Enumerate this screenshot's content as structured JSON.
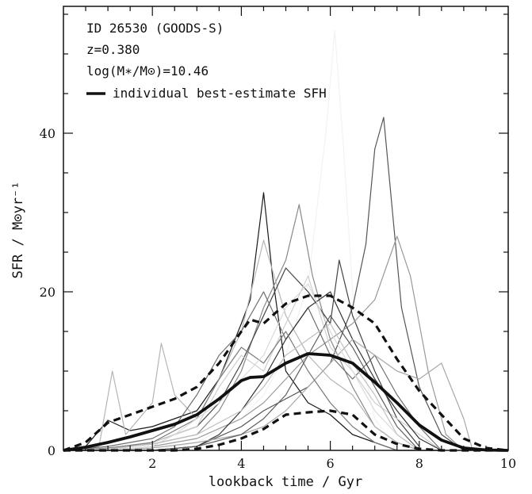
{
  "chart_data": {
    "type": "line",
    "annotations": {
      "id_label": "ID 26530 (GOODS-S)",
      "redshift_label": "z=0.380",
      "mass_label": "log(M∗/M⊙)=10.46",
      "legend_label": "individual best-estimate SFH"
    },
    "xlabel": "lookback time / Gyr",
    "ylabel": "SFR / M⊙yr⁻¹",
    "xlim": [
      0,
      10
    ],
    "ylim": [
      0,
      56
    ],
    "xticks": [
      2,
      4,
      6,
      8,
      10
    ],
    "yticks": [
      0,
      20,
      40
    ],
    "grid": false,
    "legend_position": "top-left",
    "central_percentile": {
      "name": "individual best-estimate SFH",
      "x": [
        0,
        0.5,
        1,
        1.5,
        2,
        2.5,
        3,
        3.5,
        4,
        4.2,
        4.5,
        5,
        5.5,
        6,
        6.5,
        7,
        7.5,
        8,
        8.5,
        9,
        9.5,
        10
      ],
      "y": [
        0,
        0.4,
        1.0,
        1.7,
        2.5,
        3.3,
        4.5,
        6.5,
        8.8,
        9.2,
        9.3,
        11.0,
        12.2,
        12.0,
        11.0,
        8.6,
        6.0,
        3.2,
        1.3,
        0.3,
        0.05,
        0
      ]
    },
    "upper_percentile": {
      "x": [
        0,
        0.5,
        1,
        1.5,
        2,
        2.5,
        3,
        3.5,
        4,
        4.2,
        4.5,
        5,
        5.5,
        6,
        6.5,
        7,
        7.5,
        8,
        8.5,
        9,
        9.5,
        10
      ],
      "y": [
        0,
        1.0,
        3.5,
        4.5,
        5.5,
        6.5,
        8.0,
        11.0,
        15.0,
        16.5,
        16.0,
        18.5,
        19.5,
        19.5,
        18.0,
        16.0,
        11.5,
        7.5,
        4.5,
        1.5,
        0.3,
        0
      ]
    },
    "lower_percentile": {
      "x": [
        0,
        0.5,
        1,
        1.5,
        2,
        2.5,
        3,
        3.5,
        4,
        4.5,
        5,
        5.5,
        6,
        6.5,
        7,
        7.5,
        8,
        8.5,
        9,
        10
      ],
      "y": [
        0,
        0,
        0,
        0,
        0,
        0,
        0.2,
        0.7,
        1.5,
        2.7,
        4.5,
        4.8,
        5.0,
        4.5,
        2.0,
        0.8,
        0.2,
        0,
        0,
        0
      ]
    },
    "individual_curves": [
      {
        "color": "#1a1a1a",
        "x": [
          0,
          0.5,
          1,
          1.5,
          2,
          2.5,
          3,
          3.5,
          4,
          4.2,
          4.5,
          4.7,
          5,
          5.5,
          6,
          6.5,
          7,
          7.5,
          8,
          8.5
        ],
        "y": [
          0,
          0.5,
          3.8,
          2.5,
          3.0,
          4.0,
          5.0,
          9.0,
          16.0,
          19.0,
          32.5,
          22.0,
          10.0,
          6.0,
          4.5,
          2.0,
          1.0,
          0,
          0,
          0
        ]
      },
      {
        "color": "#f2f2f2",
        "x": [
          0,
          2,
          3,
          4,
          4.5,
          5,
          5.5,
          5.9,
          6.1,
          6.3,
          6.5,
          6.8,
          7,
          7.5
        ],
        "y": [
          0,
          0,
          1.0,
          4.0,
          7.0,
          12.0,
          21.0,
          40.0,
          53.0,
          38.0,
          20.0,
          9.0,
          4.0,
          0
        ]
      },
      {
        "color": "#555555",
        "x": [
          0,
          1,
          2,
          3,
          4,
          4.5,
          5,
          5.5,
          6,
          6.5,
          6.8,
          7.0,
          7.2,
          7.4,
          7.6,
          8,
          8.5,
          9
        ],
        "y": [
          0,
          0,
          0,
          0.5,
          3.0,
          5.0,
          6.5,
          8.0,
          11.0,
          18.0,
          26.0,
          38.0,
          42.0,
          30.0,
          18.0,
          8.0,
          2.0,
          0
        ]
      },
      {
        "color": "#888888",
        "x": [
          0,
          1,
          2,
          3,
          3.5,
          4,
          4.5,
          5,
          5.3,
          5.6,
          6,
          6.5,
          7,
          7.5,
          8
        ],
        "y": [
          0,
          0.2,
          0.8,
          2.0,
          5.0,
          10.0,
          18.0,
          24.0,
          31.0,
          22.0,
          14.0,
          8.0,
          3.0,
          1.0,
          0
        ]
      },
      {
        "color": "#b5b5b5",
        "x": [
          0,
          0.8,
          1.1,
          1.4,
          2,
          2.2,
          2.5,
          3,
          3.5,
          4,
          4.5,
          5,
          5.5,
          6,
          6.5,
          7,
          7.5,
          8
        ],
        "y": [
          0,
          0.5,
          10.0,
          2.0,
          6.0,
          13.5,
          7.0,
          4.0,
          9.0,
          15.0,
          26.5,
          17.0,
          12.0,
          9.0,
          7.0,
          3.0,
          1.0,
          0
        ]
      },
      {
        "color": "#444444",
        "x": [
          0,
          1,
          2,
          3,
          3.5,
          4,
          4.5,
          5,
          5.5,
          6,
          6.2,
          6.5,
          7,
          7.5,
          8
        ],
        "y": [
          0,
          0,
          1.0,
          3.0,
          6.0,
          11.0,
          17.0,
          23.0,
          20.0,
          16.0,
          24.0,
          17.0,
          10.0,
          4.0,
          0.5
        ]
      },
      {
        "color": "#9a9a9a",
        "x": [
          0,
          1,
          2,
          3,
          4,
          4.5,
          5,
          5.5,
          6,
          6.5,
          7,
          7.5,
          7.8,
          8.2,
          8.6,
          9
        ],
        "y": [
          0,
          0,
          0.5,
          1.5,
          4.0,
          6.0,
          9.0,
          12.0,
          14.0,
          16.0,
          19.0,
          27.0,
          22.0,
          10.0,
          2.0,
          0
        ]
      },
      {
        "color": "#6e6e6e",
        "x": [
          0,
          1,
          2,
          2.5,
          3,
          3.5,
          4,
          4.5,
          5,
          5.5,
          6,
          6.5,
          7,
          7.5,
          8,
          8.5
        ],
        "y": [
          0,
          0.5,
          1.5,
          3.0,
          7.0,
          12.0,
          15.0,
          20.0,
          14.0,
          18.0,
          12.0,
          9.0,
          12.0,
          7.0,
          3.0,
          0
        ]
      },
      {
        "color": "#cfcfcf",
        "x": [
          0,
          1,
          2,
          3,
          3.5,
          4,
          4.5,
          5,
          5.5,
          6,
          6.5,
          7,
          7.5,
          8,
          8.5
        ],
        "y": [
          0,
          0,
          1.0,
          3.0,
          8.0,
          12.0,
          10.0,
          16.0,
          22.0,
          13.0,
          10.0,
          6.0,
          4.0,
          2.0,
          0
        ]
      },
      {
        "color": "#333333",
        "x": [
          0,
          2,
          3,
          3.5,
          4,
          4.5,
          5,
          5.5,
          6,
          6.5,
          7,
          7.5,
          8,
          8.5
        ],
        "y": [
          0,
          0,
          0.5,
          2.0,
          5.0,
          9.0,
          14.0,
          18.0,
          20.0,
          14.0,
          9.0,
          5.0,
          1.5,
          0
        ]
      },
      {
        "color": "#a8a8a8",
        "x": [
          0,
          1,
          2,
          3,
          4,
          4.5,
          5,
          5.5,
          6,
          6.5,
          7,
          7.5,
          8,
          8.5,
          9,
          9.2
        ],
        "y": [
          0,
          0,
          0.3,
          1.0,
          2.0,
          3.0,
          5.0,
          8.0,
          11.0,
          14.0,
          12.0,
          10.0,
          9.0,
          11.0,
          4.0,
          0
        ]
      },
      {
        "color": "#7a7a7a",
        "x": [
          0,
          1,
          2,
          3,
          3.5,
          4,
          4.5,
          5,
          5.5,
          6,
          6.5,
          7,
          7.5
        ],
        "y": [
          0,
          0.3,
          1.0,
          4.0,
          9.0,
          13.0,
          11.0,
          15.0,
          10.0,
          6.0,
          3.0,
          1.0,
          0
        ]
      },
      {
        "color": "#dadada",
        "x": [
          0,
          1,
          2,
          2.5,
          3,
          3.5,
          4,
          4.5,
          5,
          5.5,
          6,
          6.5,
          7,
          7.5,
          8
        ],
        "y": [
          0,
          0,
          0.5,
          2.0,
          4.0,
          6.0,
          9.0,
          12.0,
          18.0,
          21.0,
          15.0,
          10.0,
          5.0,
          2.0,
          0
        ]
      },
      {
        "color": "#5e5e5e",
        "x": [
          0,
          1,
          2,
          3,
          4,
          4.5,
          5,
          5.5,
          6,
          6.5,
          7,
          7.5,
          8
        ],
        "y": [
          0,
          0,
          0,
          0.5,
          2.0,
          4.0,
          7.0,
          12.0,
          17.0,
          13.0,
          8.0,
          3.0,
          0
        ]
      },
      {
        "color": "#c0c0c0",
        "x": [
          0,
          1,
          2,
          3,
          4,
          4.5,
          5,
          5.5,
          6,
          6.5,
          7,
          7.5,
          8
        ],
        "y": [
          0,
          0.2,
          0.8,
          2.0,
          5.0,
          8.0,
          12.0,
          14.0,
          16.0,
          11.0,
          7.0,
          2.0,
          0
        ]
      }
    ]
  }
}
